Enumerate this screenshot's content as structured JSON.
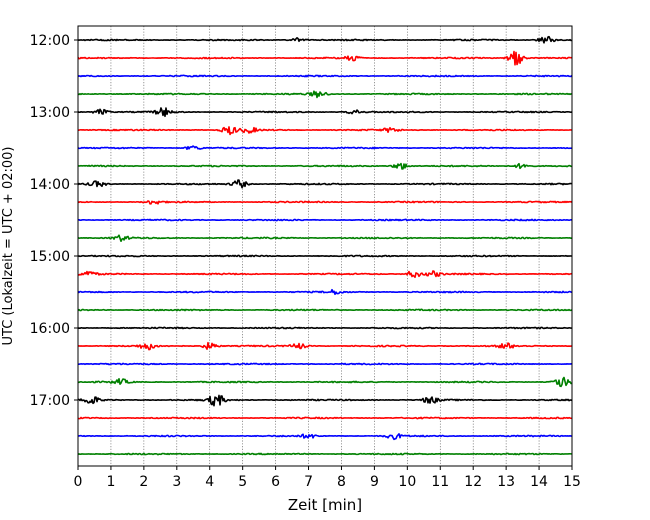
{
  "chart_data": {
    "type": "line",
    "title": "",
    "xlabel": "Zeit  [min]",
    "ylabel": "UTC (Lokalzeit = UTC + 02:00)",
    "xlim": [
      0,
      15
    ],
    "x_ticks": [
      "0",
      "1",
      "2",
      "3",
      "4",
      "5",
      "6",
      "7",
      "8",
      "9",
      "10",
      "11",
      "12",
      "13",
      "14",
      "15"
    ],
    "y_ticks": [
      "12:00",
      "13:00",
      "14:00",
      "15:00",
      "16:00",
      "17:00"
    ],
    "grid_x": true,
    "trace_start": "12:00",
    "trace_interval_min": 15,
    "trace_count": 24,
    "colors": [
      "#000000",
      "#ff0000",
      "#0000ff",
      "#008000"
    ],
    "events": [
      {
        "trace": 0,
        "minute": 14.2,
        "amp": 0.6
      },
      {
        "trace": 0,
        "minute": 6.7,
        "amp": 0.3
      },
      {
        "trace": 1,
        "minute": 13.3,
        "amp": 1.0
      },
      {
        "trace": 1,
        "minute": 8.3,
        "amp": 0.4
      },
      {
        "trace": 3,
        "minute": 7.3,
        "amp": 0.5
      },
      {
        "trace": 4,
        "minute": 2.6,
        "amp": 0.6
      },
      {
        "trace": 4,
        "minute": 0.7,
        "amp": 0.4
      },
      {
        "trace": 4,
        "minute": 8.4,
        "amp": 0.3
      },
      {
        "trace": 5,
        "minute": 4.6,
        "amp": 0.6
      },
      {
        "trace": 5,
        "minute": 5.2,
        "amp": 0.4
      },
      {
        "trace": 5,
        "minute": 9.5,
        "amp": 0.3
      },
      {
        "trace": 6,
        "minute": 3.5,
        "amp": 0.3
      },
      {
        "trace": 7,
        "minute": 9.8,
        "amp": 0.5
      },
      {
        "trace": 7,
        "minute": 13.5,
        "amp": 0.4
      },
      {
        "trace": 8,
        "minute": 0.6,
        "amp": 0.4
      },
      {
        "trace": 8,
        "minute": 4.9,
        "amp": 0.6
      },
      {
        "trace": 9,
        "minute": 2.3,
        "amp": 0.3
      },
      {
        "trace": 11,
        "minute": 1.3,
        "amp": 0.4
      },
      {
        "trace": 13,
        "minute": 0.3,
        "amp": 0.4
      },
      {
        "trace": 13,
        "minute": 10.2,
        "amp": 0.5
      },
      {
        "trace": 13,
        "minute": 10.8,
        "amp": 0.4
      },
      {
        "trace": 14,
        "minute": 7.8,
        "amp": 0.3
      },
      {
        "trace": 17,
        "minute": 2.1,
        "amp": 0.5
      },
      {
        "trace": 17,
        "minute": 4.0,
        "amp": 0.5
      },
      {
        "trace": 17,
        "minute": 6.7,
        "amp": 0.4
      },
      {
        "trace": 17,
        "minute": 13.0,
        "amp": 0.4
      },
      {
        "trace": 19,
        "minute": 1.3,
        "amp": 0.4
      },
      {
        "trace": 19,
        "minute": 14.7,
        "amp": 0.8
      },
      {
        "trace": 20,
        "minute": 0.4,
        "amp": 0.6
      },
      {
        "trace": 20,
        "minute": 4.2,
        "amp": 0.9
      },
      {
        "trace": 20,
        "minute": 10.7,
        "amp": 0.5
      },
      {
        "trace": 22,
        "minute": 7.0,
        "amp": 0.3
      },
      {
        "trace": 22,
        "minute": 9.6,
        "amp": 0.4
      }
    ]
  }
}
